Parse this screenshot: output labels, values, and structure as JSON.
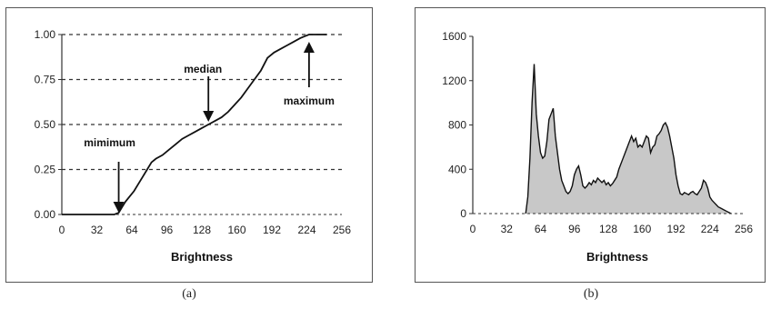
{
  "captions": {
    "a": "(a)",
    "b": "(b)"
  },
  "chart_data": [
    {
      "type": "line",
      "xlabel": "Brightness",
      "ylabel": "",
      "xlim": [
        0,
        256
      ],
      "ylim": [
        0,
        1
      ],
      "x_ticks": [
        0,
        32,
        64,
        96,
        128,
        160,
        192,
        224,
        256
      ],
      "y_ticks": [
        "0.00",
        "0.25",
        "0.50",
        "0.75",
        "1.00"
      ],
      "grid": "horizontal-dashed",
      "x": [
        0,
        48,
        52,
        55,
        58,
        62,
        66,
        70,
        74,
        78,
        82,
        86,
        92,
        98,
        104,
        110,
        116,
        122,
        128,
        134,
        140,
        146,
        152,
        158,
        164,
        170,
        176,
        182,
        188,
        194,
        200,
        206,
        212,
        218,
        222,
        226,
        230,
        236,
        242
      ],
      "values": [
        0,
        0,
        0.01,
        0.04,
        0.07,
        0.1,
        0.13,
        0.17,
        0.21,
        0.25,
        0.29,
        0.31,
        0.33,
        0.36,
        0.39,
        0.42,
        0.44,
        0.46,
        0.48,
        0.5,
        0.52,
        0.54,
        0.57,
        0.61,
        0.65,
        0.7,
        0.75,
        0.8,
        0.87,
        0.9,
        0.92,
        0.94,
        0.96,
        0.98,
        0.99,
        1,
        1,
        1,
        1
      ],
      "annotations": [
        {
          "text": "mimimum",
          "x": 52,
          "y": 0
        },
        {
          "text": "median",
          "x": 134,
          "y": 0.5
        },
        {
          "text": "maximum",
          "x": 226,
          "y": 1
        }
      ]
    },
    {
      "type": "area",
      "xlabel": "Brightness",
      "ylabel": "",
      "xlim": [
        0,
        256
      ],
      "ylim": [
        0,
        1600
      ],
      "x_ticks": [
        0,
        32,
        64,
        96,
        128,
        160,
        192,
        224,
        256
      ],
      "y_ticks": [
        0,
        400,
        800,
        1200,
        1600
      ],
      "color": "#c8c8c8",
      "x": [
        50,
        52,
        54,
        56,
        58,
        60,
        62,
        64,
        66,
        68,
        70,
        72,
        74,
        76,
        78,
        80,
        82,
        84,
        86,
        88,
        90,
        92,
        94,
        96,
        98,
        100,
        102,
        104,
        106,
        108,
        110,
        112,
        114,
        116,
        118,
        120,
        122,
        124,
        126,
        128,
        130,
        132,
        134,
        136,
        138,
        140,
        142,
        144,
        146,
        148,
        150,
        152,
        154,
        156,
        158,
        160,
        162,
        164,
        166,
        168,
        170,
        172,
        174,
        176,
        178,
        180,
        182,
        184,
        186,
        188,
        190,
        192,
        194,
        196,
        198,
        200,
        202,
        204,
        206,
        208,
        210,
        212,
        214,
        216,
        218,
        220,
        222,
        224,
        226,
        228,
        230,
        232,
        234,
        236,
        238,
        240,
        242,
        244
      ],
      "values": [
        0,
        150,
        500,
        1000,
        1350,
        900,
        700,
        550,
        500,
        520,
        650,
        850,
        900,
        950,
        700,
        550,
        400,
        300,
        250,
        200,
        180,
        200,
        250,
        350,
        400,
        430,
        350,
        250,
        230,
        250,
        280,
        260,
        300,
        280,
        320,
        300,
        280,
        300,
        260,
        280,
        250,
        270,
        300,
        330,
        400,
        450,
        500,
        550,
        600,
        650,
        700,
        650,
        680,
        600,
        620,
        600,
        650,
        700,
        680,
        550,
        600,
        620,
        700,
        720,
        750,
        800,
        820,
        780,
        700,
        600,
        500,
        350,
        250,
        180,
        170,
        190,
        180,
        170,
        190,
        200,
        180,
        170,
        200,
        230,
        300,
        280,
        230,
        150,
        120,
        100,
        80,
        60,
        50,
        40,
        30,
        20,
        10,
        0
      ]
    }
  ]
}
